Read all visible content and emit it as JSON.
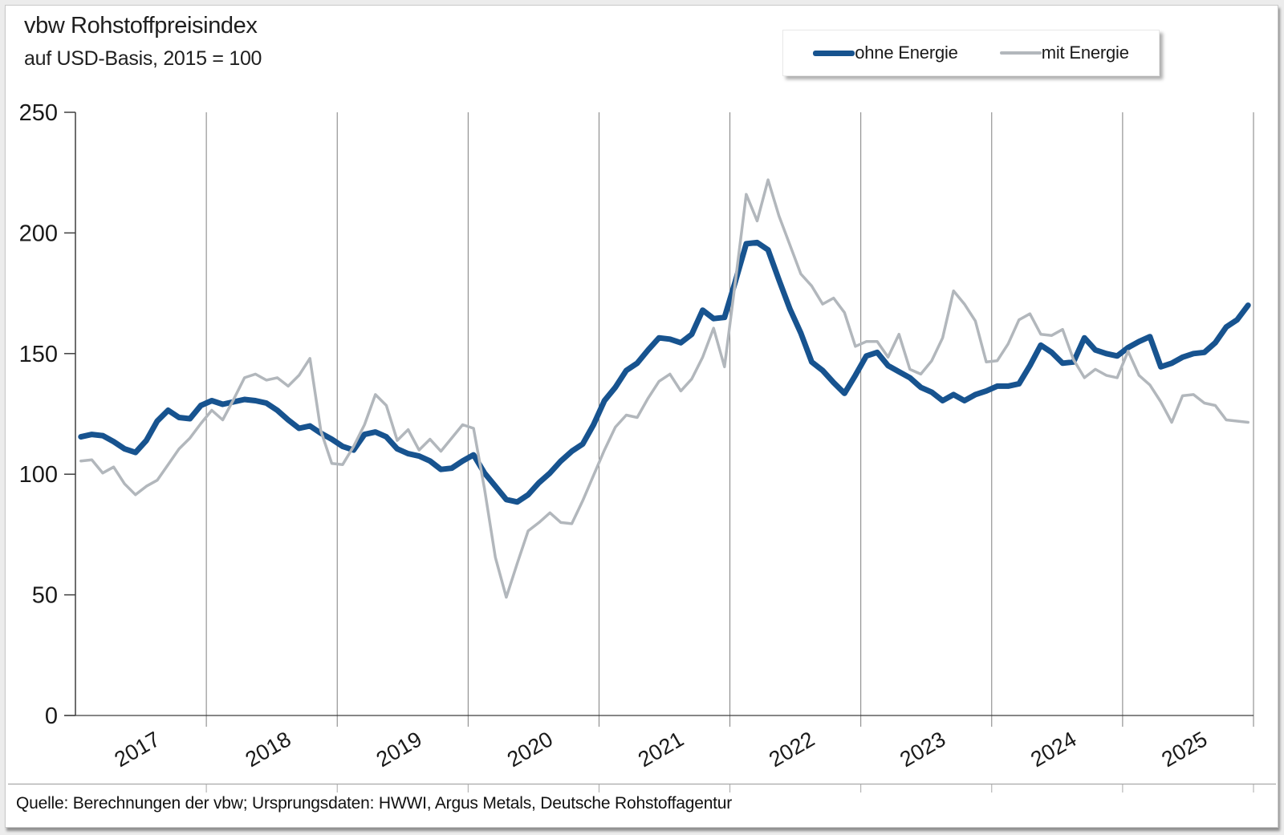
{
  "header": {
    "title": "vbw Rohstoffpreisindex",
    "subtitle": "auf USD-Basis, 2015 = 100"
  },
  "legend": [
    {
      "label": "ohne Energie",
      "color": "#17538f",
      "weight": 7
    },
    {
      "label": "mit Energie",
      "color": "#b2b7bc",
      "weight": 3.5
    }
  ],
  "footer": {
    "source": "Quelle: Berechnungen der vbw; Ursprungsdaten: HWWI, Argus Metals, Deutsche Rohstoffagentur"
  },
  "chart_data": {
    "type": "line",
    "title": "vbw Rohstoffpreisindex",
    "subtitle": "auf USD-Basis, 2015 = 100",
    "x_unit": "month",
    "x_start": "2017-01",
    "x_end": "2025-12",
    "year_labels": [
      "2017",
      "2018",
      "2019",
      "2020",
      "2021",
      "2022",
      "2023",
      "2024",
      "2025"
    ],
    "ylim": [
      0,
      250
    ],
    "yticks": [
      0,
      50,
      100,
      150,
      200,
      250
    ],
    "grid": "vertical-yearly",
    "legend_position": "top-right",
    "colors": {
      "axis": "#3f3f3f",
      "gridline": "#7f7f7f",
      "separator": "#a8a8a8",
      "text": "#1a1a1a"
    },
    "series": [
      {
        "name": "ohne Energie",
        "color": "#17538f",
        "width": 7,
        "values": [
          115.5,
          116.5,
          116,
          113.5,
          110.5,
          109,
          114,
          122,
          126.5,
          123.5,
          123,
          128.5,
          130.5,
          129,
          130,
          131,
          130.5,
          129.5,
          126.5,
          122.5,
          119,
          120,
          117,
          114.5,
          111.5,
          110,
          116.5,
          117.5,
          115.5,
          110.5,
          108.5,
          107.5,
          105.5,
          102,
          102.5,
          105.5,
          108,
          100.5,
          95,
          89.5,
          88.5,
          91.5,
          96.5,
          100.5,
          105.5,
          109.5,
          112.5,
          120.5,
          130.5,
          136,
          143,
          146,
          151.5,
          156.5,
          156,
          154.5,
          158,
          168,
          164.5,
          165,
          180,
          195.5,
          196,
          193,
          180.5,
          168.5,
          158.5,
          146.5,
          143,
          138,
          133.5,
          141,
          149,
          150.5,
          145,
          142.5,
          140,
          136,
          134,
          130.5,
          133,
          130.5,
          133,
          134.5,
          136.5,
          136.5,
          137.5,
          145,
          153.5,
          150.5,
          146,
          146.5,
          156.5,
          151.5,
          150,
          149,
          152.5,
          155,
          157,
          144.5,
          146,
          148.5,
          150,
          150.5,
          154.5,
          161,
          164,
          170
        ]
      },
      {
        "name": "mit Energie",
        "color": "#b2b7bc",
        "width": 3.5,
        "values": [
          105.5,
          106,
          100.5,
          103,
          96,
          91.5,
          95,
          97.5,
          104,
          110.5,
          115,
          121,
          126.5,
          122.5,
          131,
          140,
          141.5,
          139,
          140,
          136.5,
          141,
          148,
          118,
          104.5,
          104,
          111.5,
          120.5,
          133,
          128.5,
          114,
          118.5,
          110,
          114.5,
          109.5,
          115,
          120.5,
          119,
          94,
          65.5,
          49,
          63,
          76.5,
          80,
          84,
          80,
          79.5,
          89,
          99.5,
          110,
          119.5,
          124.5,
          123.5,
          131.5,
          138.5,
          141.5,
          134.5,
          139.5,
          148.5,
          160.5,
          144.5,
          180,
          216,
          205,
          222,
          207,
          195,
          183,
          178,
          170.5,
          173,
          167,
          153,
          155,
          155,
          148.5,
          158,
          143.5,
          141.5,
          147,
          156.5,
          176,
          170.5,
          163.5,
          146.5,
          147,
          154,
          164,
          166.5,
          158,
          157.5,
          160,
          147.5,
          140,
          143.5,
          141,
          140,
          151,
          141,
          137,
          130,
          121.5,
          132.5,
          133,
          129.5,
          128.5,
          122.5,
          122,
          121.5
        ]
      }
    ]
  }
}
